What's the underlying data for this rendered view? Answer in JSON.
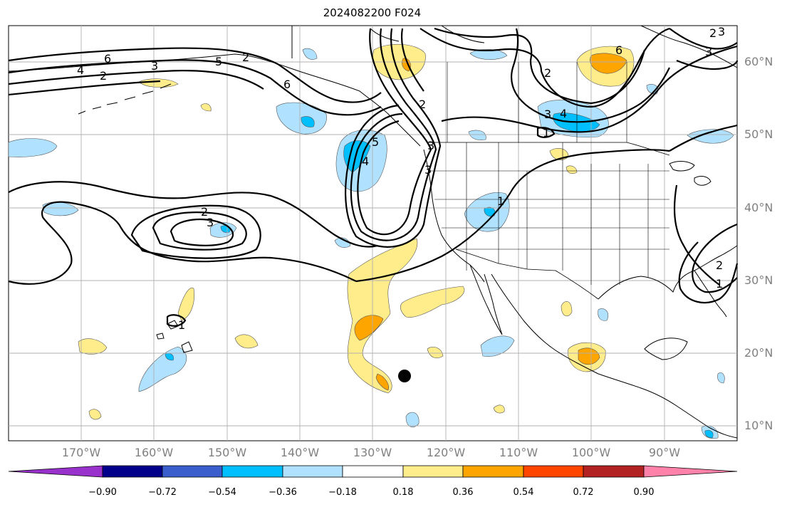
{
  "title": "2024082200 F024",
  "lon_labels": [
    "170°W",
    "160°W",
    "150°W",
    "140°W",
    "130°W",
    "120°W",
    "110°W",
    "100°W",
    "90°W"
  ],
  "lat_labels": [
    "60°N",
    "50°N",
    "40°N",
    "30°N",
    "20°N",
    "10°N"
  ],
  "colorbar": {
    "tick_labels": [
      "−0.90",
      "−0.72",
      "−0.54",
      "−0.36",
      "−0.18",
      "0.18",
      "0.36",
      "0.54",
      "0.72",
      "0.90"
    ],
    "colors": [
      "#9932cc",
      "#00008b",
      "#3a5fcd",
      "#00bfff",
      "#b0e2ff",
      "#ffffff",
      "#ffec8b",
      "#ffa500",
      "#ff4500",
      "#b22222",
      "#ff82ab"
    ]
  },
  "contour_labels": [
    "2",
    "3",
    "4",
    "5",
    "6",
    "2",
    "3",
    "4",
    "5",
    "6",
    "2",
    "3",
    "2",
    "3",
    "1",
    "1",
    "2",
    "3",
    "4",
    "1",
    "2",
    "3",
    "6",
    "1",
    "2",
    "3"
  ],
  "marker": "storm-center-dot",
  "colors": {
    "warm_fill": "#ffec8b",
    "warm_core": "#ffa500",
    "cool_fill": "#b0e2ff",
    "cool_core": "#00bfff",
    "grid": "#b0b0b0"
  }
}
